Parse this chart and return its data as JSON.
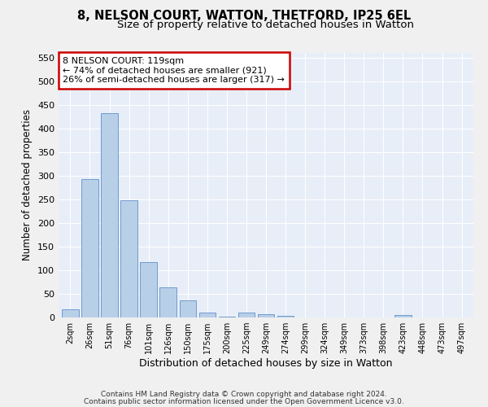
{
  "title": "8, NELSON COURT, WATTON, THETFORD, IP25 6EL",
  "subtitle": "Size of property relative to detached houses in Watton",
  "xlabel": "Distribution of detached houses by size in Watton",
  "ylabel": "Number of detached properties",
  "categories": [
    "2sqm",
    "26sqm",
    "51sqm",
    "76sqm",
    "101sqm",
    "126sqm",
    "150sqm",
    "175sqm",
    "200sqm",
    "225sqm",
    "249sqm",
    "274sqm",
    "299sqm",
    "324sqm",
    "349sqm",
    "373sqm",
    "398sqm",
    "423sqm",
    "448sqm",
    "473sqm",
    "497sqm"
  ],
  "values": [
    17,
    293,
    432,
    248,
    117,
    63,
    36,
    10,
    2,
    11,
    7,
    4,
    0,
    0,
    0,
    0,
    0,
    5,
    0,
    0,
    0
  ],
  "bar_color": "#b8cfe8",
  "bar_edge_color": "#6090c8",
  "background_color": "#e8eef8",
  "annotation_text": "8 NELSON COURT: 119sqm\n← 74% of detached houses are smaller (921)\n26% of semi-detached houses are larger (317) →",
  "annotation_box_color": "#ffffff",
  "annotation_box_edge_color": "#cc0000",
  "ylim": [
    0,
    560
  ],
  "yticks": [
    0,
    50,
    100,
    150,
    200,
    250,
    300,
    350,
    400,
    450,
    500,
    550
  ],
  "footer_line1": "Contains HM Land Registry data © Crown copyright and database right 2024.",
  "footer_line2": "Contains public sector information licensed under the Open Government Licence v3.0.",
  "fig_bg": "#f0f0f0"
}
